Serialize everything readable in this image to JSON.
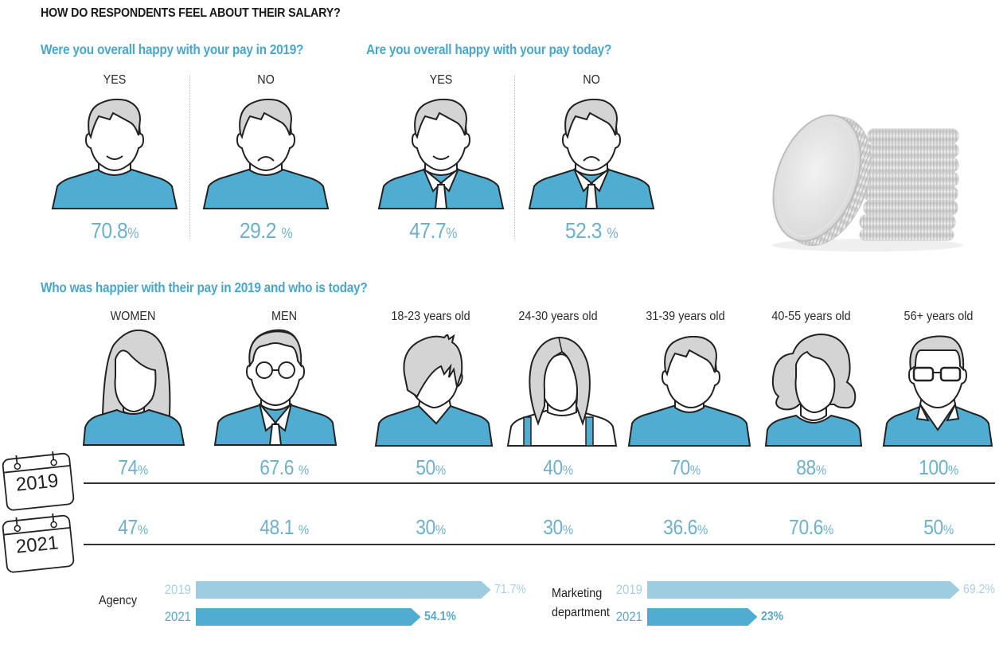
{
  "title": "HOW DO RESPONDENTS FEEL ABOUT THEIR SALARY?",
  "colors": {
    "accent": "#4aa7cb",
    "shirt": "#4fadd1",
    "hair": "#d4d4d4",
    "value_text": "#6fb0cc",
    "bar_2019": "#9ecde2",
    "bar_2021": "#4fadd1",
    "bar_2019_text": "#a9cfe0",
    "bar_2021_text": "#5aa9c9"
  },
  "coin_image": {
    "icon": "coin-stack-photo"
  },
  "chart_data": [
    {
      "type": "pictogram",
      "title": "Were you overall happy with your pay in 2019?",
      "categories": [
        "YES",
        "NO"
      ],
      "values": [
        70.8,
        29.2
      ],
      "value_labels": [
        "70.8",
        "29.2 "
      ],
      "unit": "%",
      "icons": [
        "happy-man-icon",
        "sad-man-icon"
      ]
    },
    {
      "type": "pictogram",
      "title": "Are you overall happy with your pay today?",
      "categories": [
        "YES",
        "NO"
      ],
      "values": [
        47.7,
        52.3
      ],
      "value_labels": [
        "47.7",
        "52.3 "
      ],
      "unit": "%",
      "icons": [
        "happy-man-tie-icon",
        "sad-man-tie-icon"
      ]
    },
    {
      "type": "table",
      "title": "Who was happier with their pay in 2019 and who is today?",
      "categories": [
        "WOMEN",
        "MEN",
        "18-23 years old",
        "24-30 years old",
        "31-39 years old",
        "40-55 years old",
        "56+ years old"
      ],
      "icons": [
        "woman-long-hair-icon",
        "man-glasses-icon",
        "young-man-fringe-icon",
        "young-woman-bob-icon",
        "man-icon",
        "woman-wavy-hair-icon",
        "older-man-glasses-icon"
      ],
      "series": [
        {
          "name": "2019",
          "values": [
            74,
            67.6,
            50,
            40,
            70,
            88,
            100
          ],
          "labels": [
            "74",
            "67.6 ",
            "50",
            "40",
            "70",
            "88",
            "100"
          ]
        },
        {
          "name": "2021",
          "values": [
            47,
            48.1,
            30,
            30,
            36.6,
            70.6,
            50
          ],
          "labels": [
            "47",
            "48.1 ",
            "30",
            "30",
            "36.6",
            "70.6",
            "50"
          ]
        }
      ],
      "unit": "%",
      "row_icons": [
        "calendar-icon",
        "calendar-icon"
      ]
    },
    {
      "type": "bar",
      "orientation": "horizontal",
      "groups": [
        {
          "name": "Agency",
          "series": [
            {
              "name": "2019",
              "value": 71.7,
              "label": "71.7%"
            },
            {
              "name": "2021",
              "value": 54.1,
              "label": "54.1%"
            }
          ]
        },
        {
          "name": "Marketing department",
          "name_lines": [
            "Marketing",
            "department"
          ],
          "series": [
            {
              "name": "2019",
              "value": 69.2,
              "label": "69.2%"
            },
            {
              "name": "2021",
              "value": 23,
              "label": "23%"
            }
          ]
        }
      ],
      "xlim": [
        0,
        100
      ]
    }
  ]
}
